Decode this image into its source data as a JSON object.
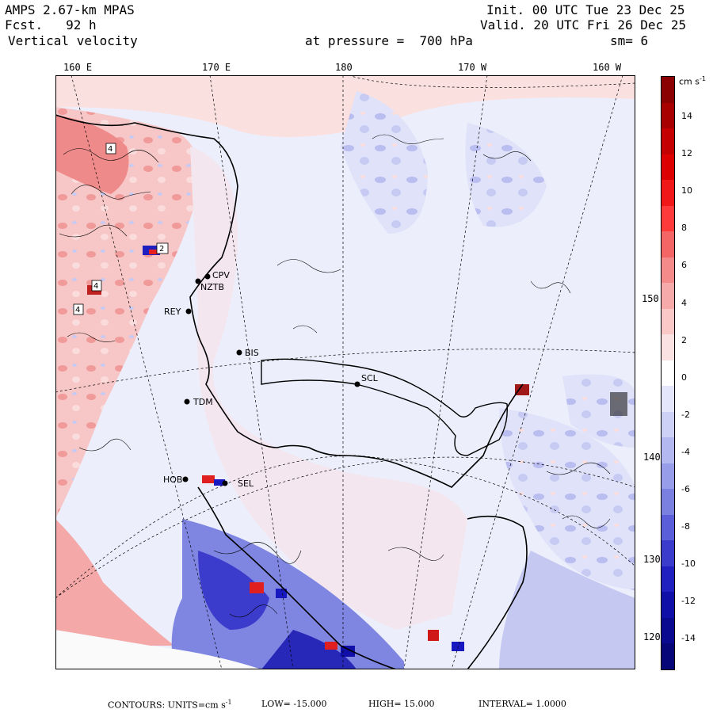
{
  "header": {
    "model": "AMPS 2.67-km MPAS",
    "fcst": "Fcst.   92 h",
    "field": "Vertical velocity",
    "level": "at pressure =  700 hPa",
    "init": "Init. 00 UTC Tue 23 Dec 25",
    "valid": "Valid. 20 UTC Fri 26 Dec 25",
    "smooth": "sm= 6"
  },
  "lon_labels": [
    "160 E",
    "170 E",
    "180",
    "170 W",
    "160 W"
  ],
  "lat_labels": [
    "150 W",
    "140 W",
    "130 W",
    "120 W"
  ],
  "colorbar": {
    "units": "cm s",
    "units_sup": "-1",
    "ticks": [
      "14",
      "12",
      "10",
      "8",
      "6",
      "4",
      "2",
      "0",
      "-2",
      "-4",
      "-6",
      "-8",
      "-10",
      "-12",
      "-14"
    ],
    "colors": [
      "#8b0000",
      "#a80000",
      "#c40000",
      "#dd0000",
      "#f01818",
      "#ff3a3a",
      "#f46666",
      "#f58a8a",
      "#f7aaaa",
      "#fbc8c8",
      "#fbe2e2",
      "#ffffff",
      "#e4e6fb",
      "#cdd1f6",
      "#b3b8f0",
      "#979de8",
      "#7a80e0",
      "#5a5ed8",
      "#3c3ccc",
      "#2020c0",
      "#1010a8",
      "#0a0a90",
      "#060678"
    ]
  },
  "stations": [
    "CPV",
    "NZTB",
    "REY",
    "BIS",
    "TDM",
    "SCL",
    "SEL",
    "HOB"
  ],
  "markers": [
    "2",
    "4",
    "4",
    "4"
  ],
  "footer": {
    "contours": "CONTOURS:  UNITS=cm s",
    "units_sup": "-1",
    "low": "LOW= -15.000",
    "high": "HIGH=  15.000",
    "interval": "INTERVAL=   1.0000"
  },
  "colors": {
    "positive": "#f6b9b9",
    "negative": "#b9bdf0",
    "neutral": "#eef0fb",
    "strong_neg": "#3c3ccc",
    "strong_pos": "#e83030"
  }
}
